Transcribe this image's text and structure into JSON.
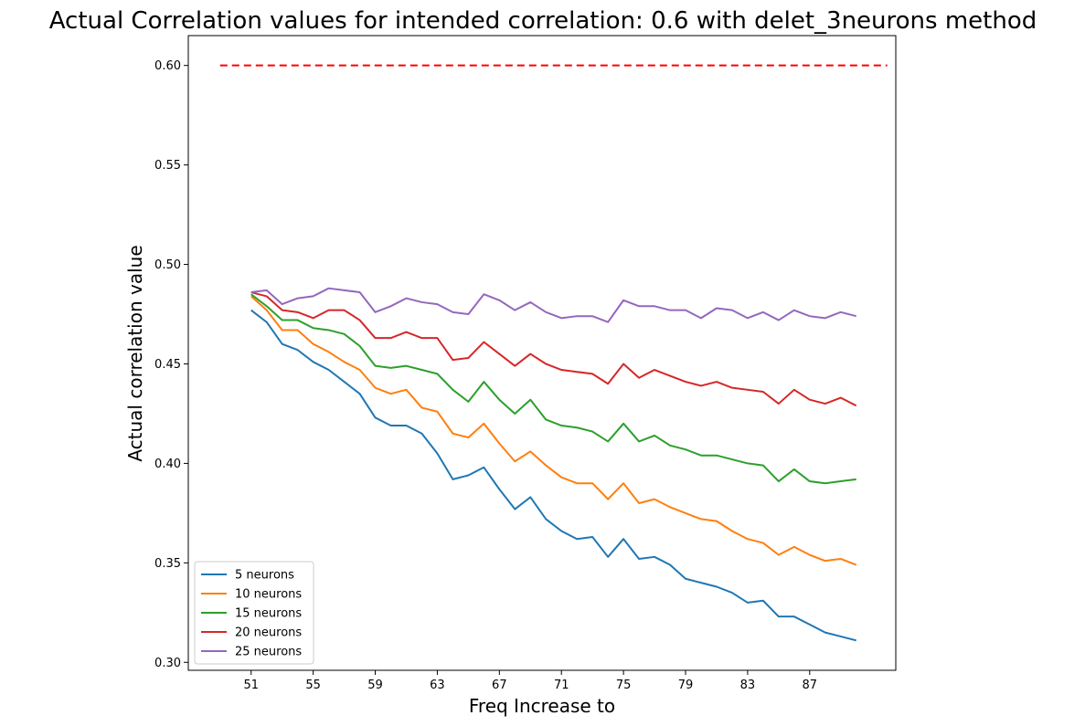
{
  "chart_data": {
    "type": "line",
    "title": "Actual Correlation values for intended correlation:  0.6 with delet_3neurons method",
    "xlabel": "Freq Increase to",
    "ylabel": "Actual correlation value",
    "xlim": [
      46.95,
      92.55
    ],
    "ylim": [
      0.296,
      0.615
    ],
    "xticks": [
      51,
      55,
      59,
      63,
      67,
      71,
      75,
      79,
      83,
      87
    ],
    "yticks": [
      0.3,
      0.35,
      0.4,
      0.45,
      0.5,
      0.55,
      0.6
    ],
    "ytick_labels": [
      "0.30",
      "0.35",
      "0.40",
      "0.45",
      "0.50",
      "0.55",
      "0.60"
    ],
    "grid": false,
    "legend_position": "lower-left",
    "x": [
      51,
      52,
      53,
      54,
      55,
      56,
      57,
      58,
      59,
      60,
      61,
      62,
      63,
      64,
      65,
      66,
      67,
      68,
      69,
      70,
      71,
      72,
      73,
      74,
      75,
      76,
      77,
      78,
      79,
      80,
      81,
      82,
      83,
      84,
      85,
      86,
      87,
      88,
      89,
      90
    ],
    "series": [
      {
        "name": "5 neurons",
        "color": "#1f77b4",
        "values": [
          0.477,
          0.471,
          0.46,
          0.457,
          0.451,
          0.447,
          0.441,
          0.435,
          0.423,
          0.419,
          0.419,
          0.415,
          0.405,
          0.392,
          0.394,
          0.398,
          0.387,
          0.377,
          0.383,
          0.372,
          0.366,
          0.362,
          0.363,
          0.353,
          0.362,
          0.352,
          0.353,
          0.349,
          0.342,
          0.34,
          0.338,
          0.335,
          0.33,
          0.331,
          0.323,
          0.323,
          0.319,
          0.315,
          0.313,
          0.311
        ]
      },
      {
        "name": "10 neurons",
        "color": "#ff7f0e",
        "values": [
          0.484,
          0.477,
          0.467,
          0.467,
          0.46,
          0.456,
          0.451,
          0.447,
          0.438,
          0.435,
          0.437,
          0.428,
          0.426,
          0.415,
          0.413,
          0.42,
          0.41,
          0.401,
          0.406,
          0.399,
          0.393,
          0.39,
          0.39,
          0.382,
          0.39,
          0.38,
          0.382,
          0.378,
          0.375,
          0.372,
          0.371,
          0.366,
          0.362,
          0.36,
          0.354,
          0.358,
          0.354,
          0.351,
          0.352,
          0.349
        ]
      },
      {
        "name": "15 neurons",
        "color": "#2ca02c",
        "values": [
          0.485,
          0.479,
          0.472,
          0.472,
          0.468,
          0.467,
          0.465,
          0.459,
          0.449,
          0.448,
          0.449,
          0.447,
          0.445,
          0.437,
          0.431,
          0.441,
          0.432,
          0.425,
          0.432,
          0.422,
          0.419,
          0.418,
          0.416,
          0.411,
          0.42,
          0.411,
          0.414,
          0.409,
          0.407,
          0.404,
          0.404,
          0.402,
          0.4,
          0.399,
          0.391,
          0.397,
          0.391,
          0.39,
          0.391,
          0.392
        ]
      },
      {
        "name": "20 neurons",
        "color": "#d62728",
        "values": [
          0.486,
          0.484,
          0.477,
          0.476,
          0.473,
          0.477,
          0.477,
          0.472,
          0.463,
          0.463,
          0.466,
          0.463,
          0.463,
          0.452,
          0.453,
          0.461,
          0.455,
          0.449,
          0.455,
          0.45,
          0.447,
          0.446,
          0.445,
          0.44,
          0.45,
          0.443,
          0.447,
          0.444,
          0.441,
          0.439,
          0.441,
          0.438,
          0.437,
          0.436,
          0.43,
          0.437,
          0.432,
          0.43,
          0.433,
          0.429
        ]
      },
      {
        "name": "25 neurons",
        "color": "#9467bd",
        "values": [
          0.486,
          0.487,
          0.48,
          0.483,
          0.484,
          0.488,
          0.487,
          0.486,
          0.476,
          0.479,
          0.483,
          0.481,
          0.48,
          0.476,
          0.475,
          0.485,
          0.482,
          0.477,
          0.481,
          0.476,
          0.473,
          0.474,
          0.474,
          0.471,
          0.482,
          0.479,
          0.479,
          0.477,
          0.477,
          0.473,
          0.478,
          0.477,
          0.473,
          0.476,
          0.472,
          0.477,
          0.474,
          0.473,
          0.476,
          0.474
        ]
      }
    ],
    "reference_line": {
      "y": 0.6,
      "x_range": [
        49,
        92
      ],
      "color": "#ff0000",
      "style": "dashed"
    }
  }
}
